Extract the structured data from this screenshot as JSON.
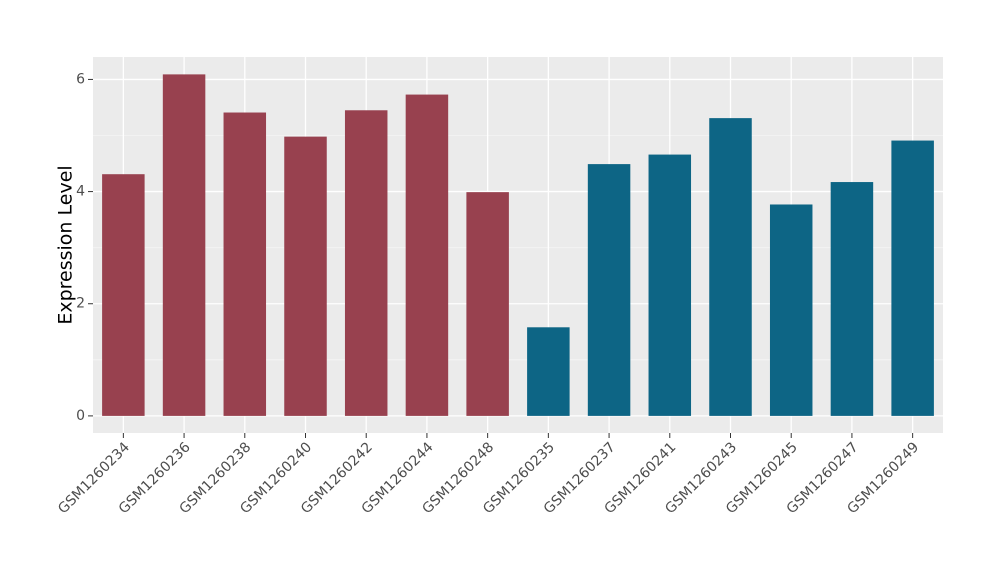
{
  "chart_data": {
    "type": "bar",
    "y_label": "Expression Level",
    "categories": [
      "GSM1260234",
      "GSM1260236",
      "GSM1260238",
      "GSM1260240",
      "GSM1260242",
      "GSM1260244",
      "GSM1260248",
      "GSM1260235",
      "GSM1260237",
      "GSM1260241",
      "GSM1260243",
      "GSM1260245",
      "GSM1260247",
      "GSM1260249"
    ],
    "values": [
      4.31,
      6.09,
      5.41,
      4.98,
      5.45,
      5.73,
      3.99,
      1.58,
      4.49,
      4.66,
      5.31,
      3.77,
      4.17,
      4.91
    ],
    "colors": [
      "#98414f",
      "#98414f",
      "#98414f",
      "#98414f",
      "#98414f",
      "#98414f",
      "#98414f",
      "#0d6585",
      "#0d6585",
      "#0d6585",
      "#0d6585",
      "#0d6585",
      "#0d6585",
      "#0d6585"
    ],
    "ylim": [
      -0.305,
      6.4
    ],
    "yticks": [
      0,
      2,
      4,
      6
    ],
    "minor_yticks": [
      1,
      3,
      5
    ],
    "grid": true
  }
}
